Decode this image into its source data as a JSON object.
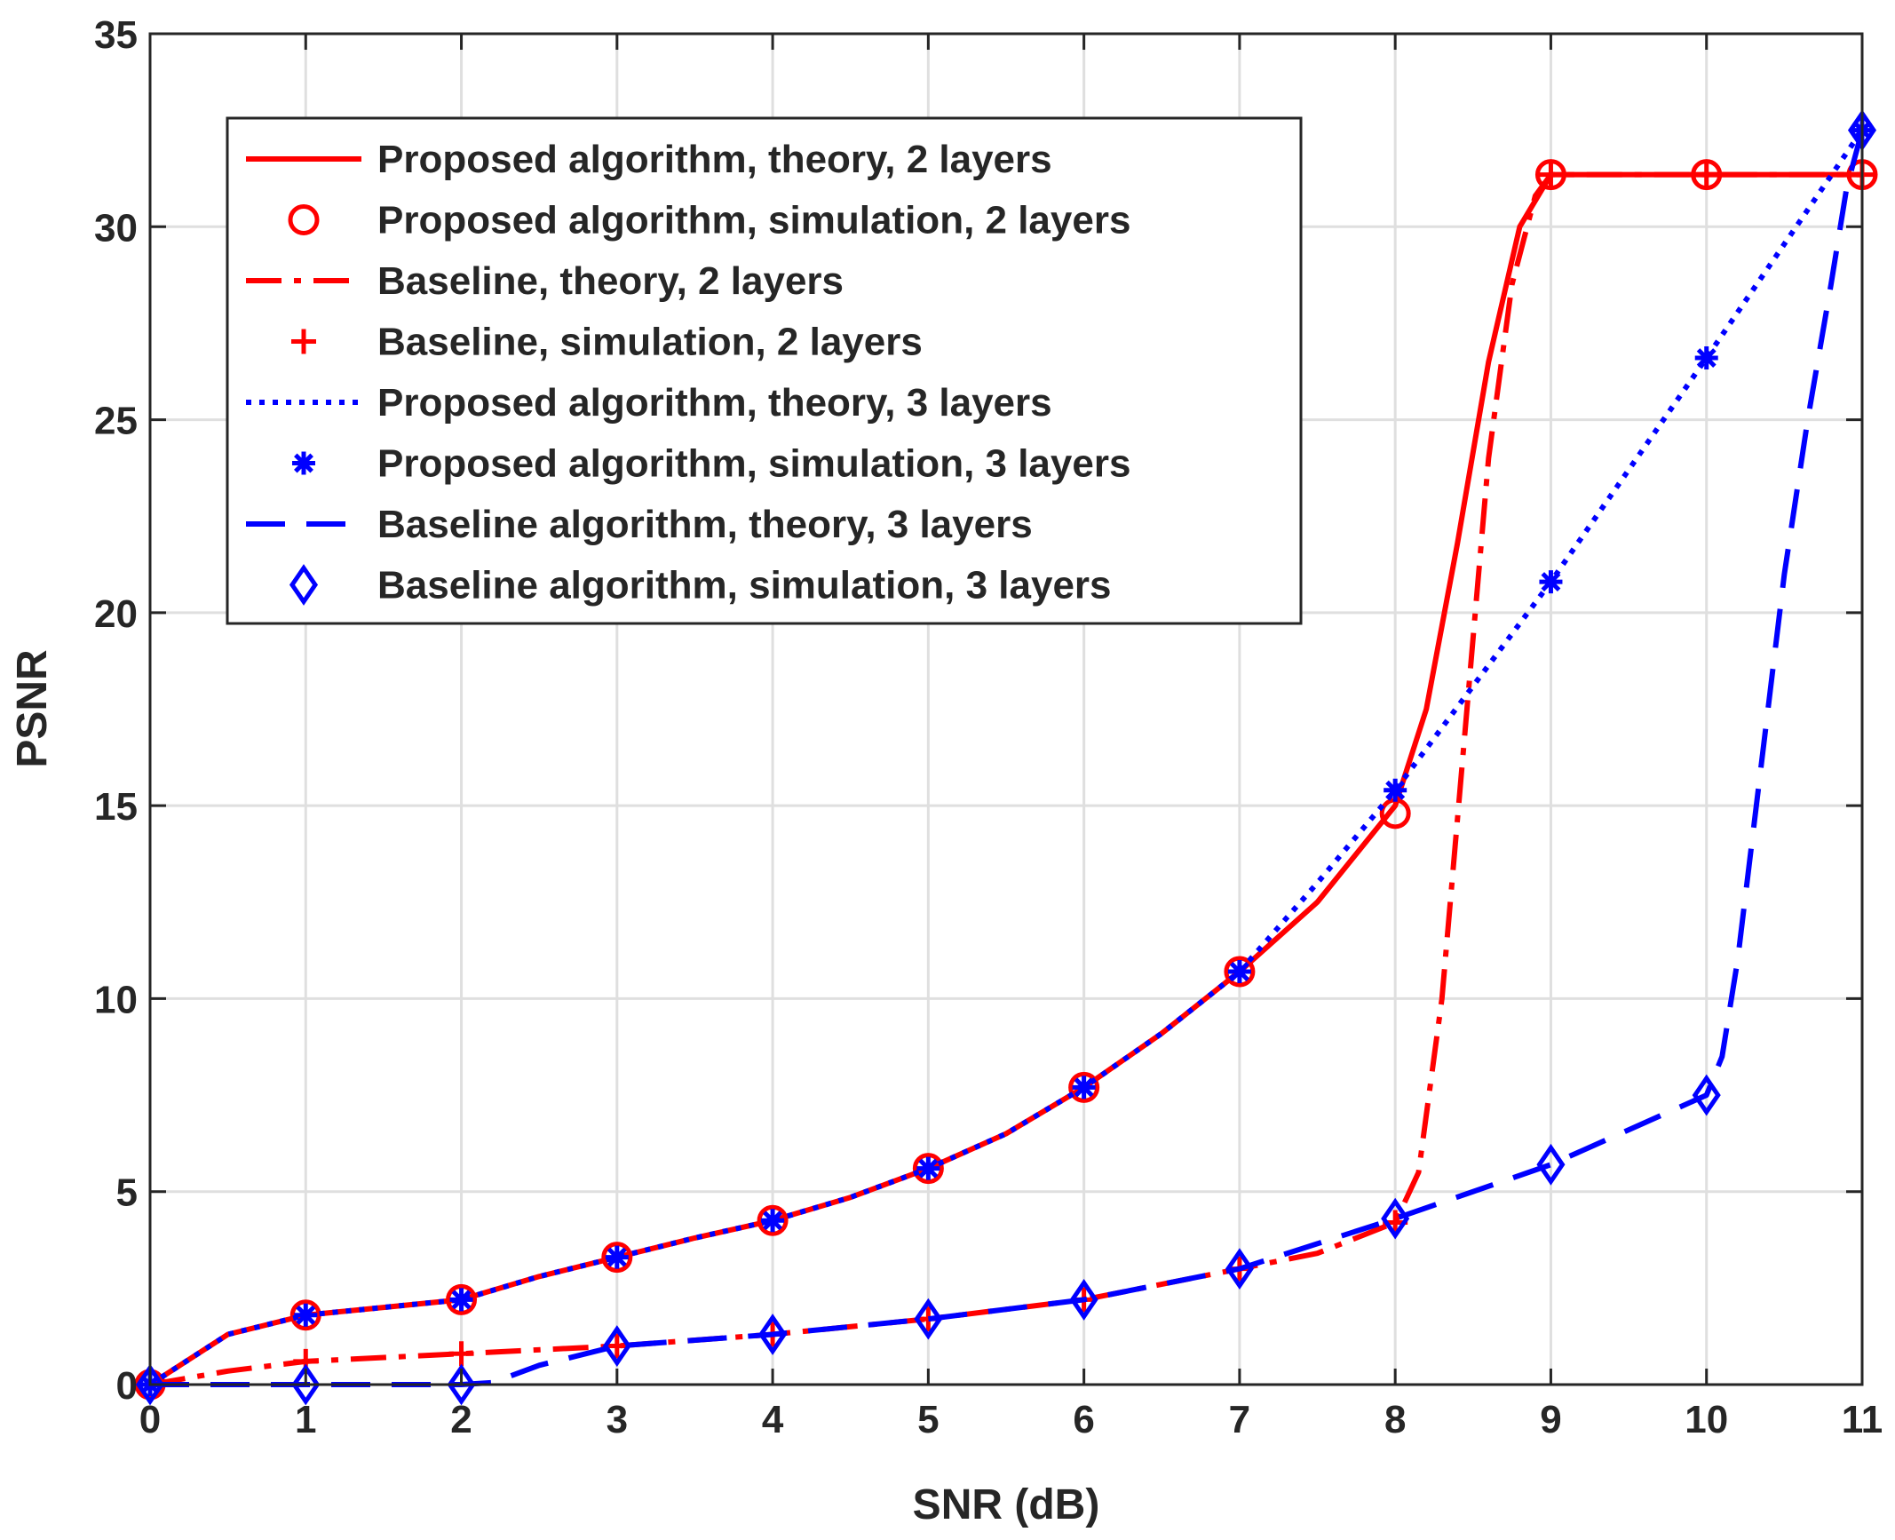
{
  "chart_data": {
    "type": "line",
    "title": "",
    "xlabel": "SNR (dB)",
    "ylabel": "PSNR",
    "xlim": [
      0,
      11
    ],
    "ylim": [
      0,
      35
    ],
    "grid": true,
    "legend_position": "top-left",
    "x_ticks": [
      0,
      1,
      2,
      3,
      4,
      5,
      6,
      7,
      8,
      9,
      10,
      11
    ],
    "x_tick_labels": [
      "0",
      "1",
      "2",
      "3",
      "4",
      "5",
      "6",
      "7",
      "8",
      "9",
      "10",
      "11"
    ],
    "y_ticks": [
      0,
      5,
      10,
      15,
      20,
      25,
      30,
      35
    ],
    "y_tick_labels": [
      "0",
      "5",
      "10",
      "15",
      "20",
      "25",
      "30",
      "35"
    ],
    "series": [
      {
        "name": "Proposed algorithm, theory, 2 layers",
        "color": "#ff0000",
        "line": "solid",
        "marker": "none",
        "x": [
          0,
          0.5,
          1,
          1.5,
          2,
          2.5,
          3,
          3.5,
          4,
          4.5,
          5,
          5.5,
          6,
          6.5,
          7,
          7.5,
          8,
          8.2,
          8.4,
          8.6,
          8.8,
          9,
          10,
          11
        ],
        "y": [
          0,
          1.3,
          1.8,
          2.0,
          2.2,
          2.8,
          3.3,
          3.8,
          4.25,
          4.85,
          5.6,
          6.5,
          7.7,
          9.1,
          10.7,
          12.5,
          15.0,
          17.5,
          21.8,
          26.5,
          30.0,
          31.35,
          31.35,
          31.35
        ]
      },
      {
        "name": "Proposed algorithm, simulation, 2 layers",
        "color": "#ff0000",
        "line": "none",
        "marker": "circle",
        "x": [
          0,
          1,
          2,
          3,
          4,
          5,
          6,
          7,
          8,
          9,
          10,
          11
        ],
        "y": [
          0,
          1.8,
          2.2,
          3.3,
          4.25,
          5.6,
          7.7,
          10.7,
          14.8,
          31.35,
          31.35,
          31.35
        ]
      },
      {
        "name": "Baseline, theory, 2 layers",
        "color": "#ff0000",
        "line": "dashdot",
        "marker": "none",
        "x": [
          0,
          0.5,
          1,
          2,
          3,
          4,
          5,
          6,
          7,
          7.5,
          8,
          8.15,
          8.3,
          8.45,
          8.6,
          8.75,
          8.9,
          9,
          10,
          11
        ],
        "y": [
          0,
          0.35,
          0.6,
          0.8,
          1.0,
          1.3,
          1.7,
          2.2,
          3.0,
          3.4,
          4.2,
          5.5,
          10.0,
          17.0,
          24.0,
          28.5,
          30.8,
          31.35,
          31.35,
          31.35
        ]
      },
      {
        "name": "Baseline, simulation, 2 layers",
        "color": "#ff0000",
        "line": "none",
        "marker": "plus",
        "x": [
          0,
          1,
          2,
          3,
          4,
          5,
          6,
          7,
          8,
          9,
          10,
          11
        ],
        "y": [
          0,
          0.6,
          0.8,
          1.0,
          1.3,
          1.7,
          2.2,
          3.0,
          4.2,
          31.35,
          31.35,
          31.35
        ]
      },
      {
        "name": "Proposed algorithm, theory, 3 layers",
        "color": "#0000ff",
        "line": "dotted",
        "marker": "none",
        "x": [
          0,
          0.5,
          1,
          1.5,
          2,
          2.5,
          3,
          3.5,
          4,
          4.5,
          5,
          5.5,
          6,
          6.5,
          7,
          7.5,
          8,
          9,
          10,
          11
        ],
        "y": [
          0,
          1.3,
          1.8,
          2.0,
          2.2,
          2.8,
          3.3,
          3.8,
          4.25,
          4.85,
          5.6,
          6.5,
          7.7,
          9.1,
          10.7,
          13.0,
          15.4,
          20.8,
          26.6,
          32.5
        ]
      },
      {
        "name": "Proposed algorithm, simulation, 3 layers",
        "color": "#0000ff",
        "line": "none",
        "marker": "asterisk",
        "x": [
          0,
          1,
          2,
          3,
          4,
          5,
          6,
          7,
          8,
          9,
          10,
          11
        ],
        "y": [
          0,
          1.8,
          2.2,
          3.3,
          4.25,
          5.6,
          7.7,
          10.7,
          15.4,
          20.8,
          26.6,
          32.5
        ]
      },
      {
        "name": "Baseline algorithm, theory, 3 layers",
        "color": "#0000ff",
        "line": "dashed",
        "marker": "none",
        "x": [
          0,
          1,
          2,
          2.2,
          2.5,
          3,
          4,
          5,
          6,
          7,
          8,
          9,
          10,
          10.1,
          10.2,
          10.35,
          10.5,
          10.65,
          10.8,
          10.9,
          11
        ],
        "y": [
          0,
          0,
          0,
          0.05,
          0.5,
          1.0,
          1.3,
          1.7,
          2.2,
          3.0,
          4.3,
          5.7,
          7.5,
          8.5,
          11.0,
          16.0,
          21.0,
          25.0,
          28.5,
          31.0,
          32.5
        ]
      },
      {
        "name": "Baseline algorithm, simulation, 3 layers",
        "color": "#0000ff",
        "line": "none",
        "marker": "diamond",
        "x": [
          0,
          1,
          2,
          3,
          4,
          5,
          6,
          7,
          8,
          9,
          10,
          11
        ],
        "y": [
          0,
          0,
          0,
          1.0,
          1.3,
          1.7,
          2.2,
          3.0,
          4.3,
          5.7,
          7.5,
          32.5
        ]
      }
    ]
  }
}
